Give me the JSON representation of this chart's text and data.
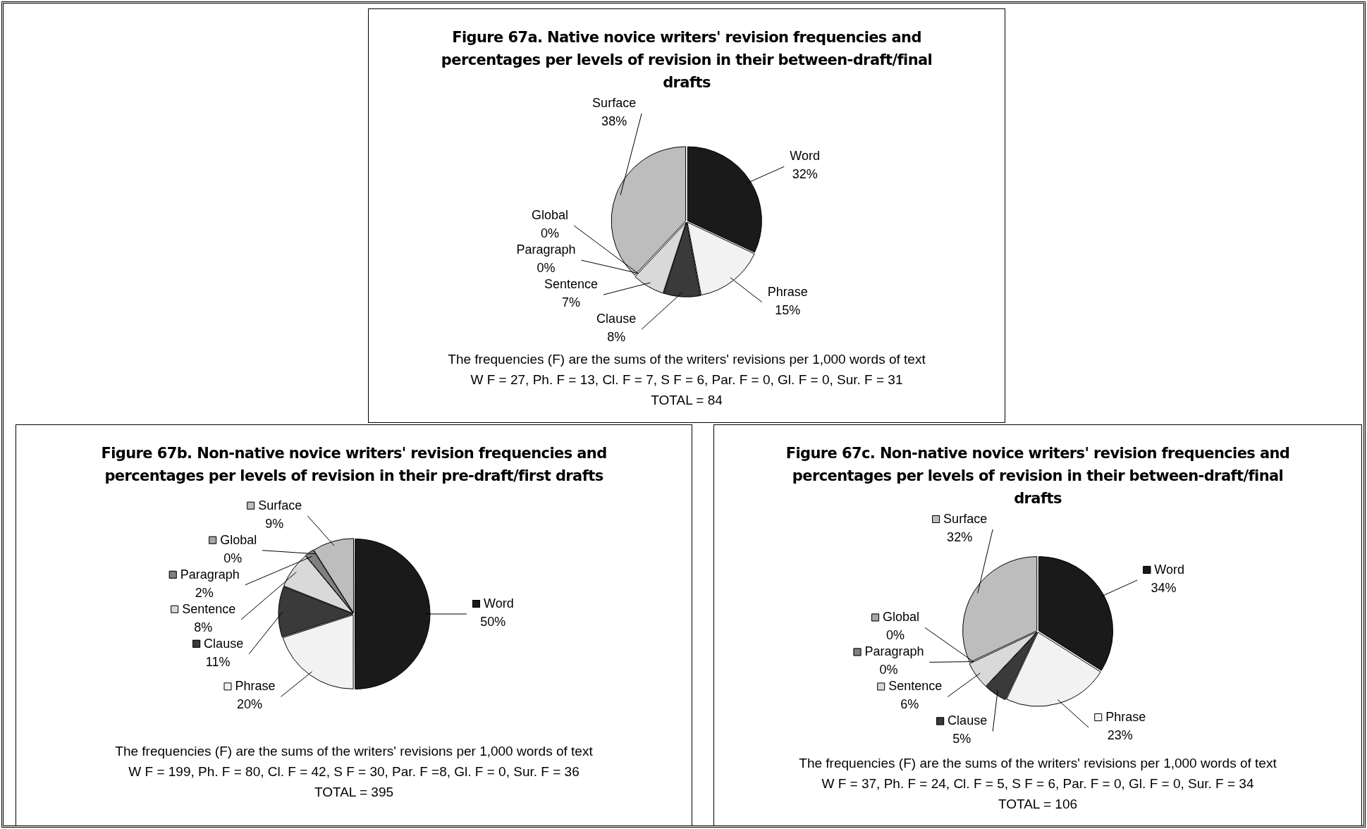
{
  "chart_data": [
    {
      "type": "pie",
      "title": "Figure 67a. Native novice writers' revision frequencies and percentages per levels of revision in their between-draft/final drafts",
      "categories": [
        "Word",
        "Phrase",
        "Clause",
        "Sentence",
        "Paragraph",
        "Global",
        "Surface"
      ],
      "values": [
        32,
        15,
        8,
        7,
        0,
        0,
        38
      ],
      "value_labels": [
        "32%",
        "15%",
        "8%",
        "7%",
        "0%",
        "0%",
        "38%"
      ],
      "colors": [
        "#1a1a1a",
        "#f2f2f2",
        "#3a3a3a",
        "#d9d9d9",
        "#808080",
        "#a6a6a6",
        "#bdbdbd"
      ],
      "annotations": [
        "The frequencies (F) are the sums of the writers' revisions per 1,000 words of text",
        "W F = 27, Ph. F = 13, Cl. F = 7, S F = 6, Par. F = 0, Gl. F = 0, Sur. F = 31",
        "TOTAL = 84"
      ]
    },
    {
      "type": "pie",
      "title": "Figure 67b. Non-native novice writers' revision frequencies and percentages per levels of revision in their pre-draft/first drafts",
      "categories": [
        "Word",
        "Phrase",
        "Clause",
        "Sentence",
        "Paragraph",
        "Global",
        "Surface"
      ],
      "values": [
        50,
        20,
        11,
        8,
        2,
        0,
        9
      ],
      "value_labels": [
        "50%",
        "20%",
        "11%",
        "8%",
        "2%",
        "0%",
        "9%"
      ],
      "colors": [
        "#1a1a1a",
        "#f2f2f2",
        "#3a3a3a",
        "#d9d9d9",
        "#808080",
        "#a6a6a6",
        "#bdbdbd"
      ],
      "legend": "left",
      "annotations": [
        "The frequencies (F) are the sums of the writers' revisions per 1,000 words of text",
        "W F = 199,  Ph. F = 80, Cl. F = 42, S F = 30, Par. F =8, Gl. F = 0, Sur. F = 36",
        "TOTAL = 395"
      ]
    },
    {
      "type": "pie",
      "title": "Figure 67c. Non-native novice writers' revision frequencies and percentages per levels of revision in their between-draft/final drafts",
      "categories": [
        "Word",
        "Phrase",
        "Clause",
        "Sentence",
        "Paragraph",
        "Global",
        "Surface"
      ],
      "values": [
        34,
        23,
        5,
        6,
        0,
        0,
        32
      ],
      "value_labels": [
        "34%",
        "23%",
        "5%",
        "6%",
        "0%",
        "0%",
        "32%"
      ],
      "colors": [
        "#1a1a1a",
        "#f2f2f2",
        "#3a3a3a",
        "#d9d9d9",
        "#808080",
        "#a6a6a6",
        "#bdbdbd"
      ],
      "legend": "left",
      "annotations": [
        "The frequencies (F) are the sums of the writers' revisions per 1,000 words of text",
        "W F = 37, Ph. F = 24, Cl. F = 5, S F = 6, Par. F = 0, Gl. F = 0, Sur. F = 34",
        "TOTAL = 106"
      ]
    }
  ]
}
